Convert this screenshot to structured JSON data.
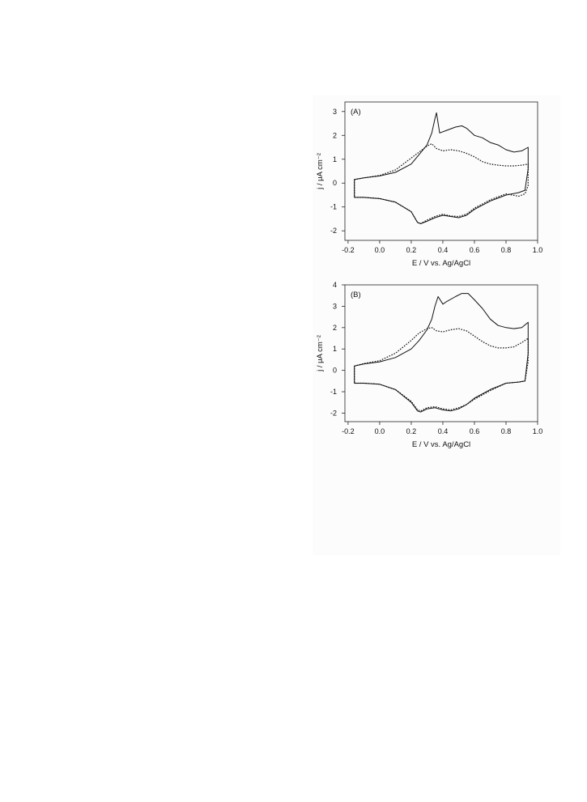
{
  "chart_data": [
    {
      "type": "line",
      "panel_label": "(A)",
      "xlabel": "E / V vs. Ag/AgCl",
      "ylabel": "j / μA cm⁻²",
      "xlim": [
        -0.22,
        1.0
      ],
      "ylim": [
        -2.4,
        3.4
      ],
      "xticks": [
        "-0.2",
        "0.0",
        "0.2",
        "0.4",
        "0.6",
        "0.8",
        "1.0"
      ],
      "yticks": [
        "3",
        "2",
        "1",
        "0",
        "-1",
        "-2"
      ],
      "grid": false,
      "series": [
        {
          "style": "solid",
          "x": [
            -0.16,
            -0.1,
            0.0,
            0.1,
            0.2,
            0.25,
            0.3,
            0.33,
            0.35,
            0.36,
            0.38,
            0.42,
            0.48,
            0.52,
            0.55,
            0.6,
            0.65,
            0.7,
            0.75,
            0.8,
            0.85,
            0.9,
            0.94,
            0.94,
            0.92,
            0.88,
            0.8,
            0.7,
            0.6,
            0.55,
            0.5,
            0.45,
            0.4,
            0.35,
            0.3,
            0.26,
            0.24,
            0.2,
            0.1,
            0.0,
            -0.1,
            -0.16,
            -0.16
          ],
          "y": [
            0.15,
            0.22,
            0.3,
            0.45,
            0.8,
            1.2,
            1.6,
            2.1,
            2.7,
            2.95,
            2.1,
            2.2,
            2.35,
            2.4,
            2.3,
            2.0,
            1.9,
            1.7,
            1.6,
            1.4,
            1.3,
            1.35,
            1.5,
            0.6,
            -0.3,
            -0.4,
            -0.5,
            -0.75,
            -1.1,
            -1.35,
            -1.45,
            -1.4,
            -1.35,
            -1.45,
            -1.6,
            -1.7,
            -1.65,
            -1.2,
            -0.8,
            -0.65,
            -0.6,
            -0.6,
            0.15
          ]
        },
        {
          "style": "dotted",
          "x": [
            -0.16,
            -0.1,
            0.0,
            0.1,
            0.2,
            0.25,
            0.3,
            0.33,
            0.36,
            0.4,
            0.45,
            0.5,
            0.55,
            0.6,
            0.65,
            0.7,
            0.75,
            0.8,
            0.85,
            0.9,
            0.94,
            0.94,
            0.92,
            0.88,
            0.84,
            0.8,
            0.7,
            0.6,
            0.55,
            0.5,
            0.45,
            0.4,
            0.35,
            0.3,
            0.26,
            0.24,
            0.2,
            0.1,
            0.0,
            -0.1,
            -0.16,
            -0.16
          ],
          "y": [
            0.15,
            0.22,
            0.32,
            0.55,
            1.05,
            1.3,
            1.55,
            1.65,
            1.45,
            1.35,
            1.4,
            1.35,
            1.25,
            1.1,
            0.9,
            0.8,
            0.75,
            0.72,
            0.72,
            0.75,
            0.8,
            -0.1,
            -0.45,
            -0.55,
            -0.5,
            -0.45,
            -0.7,
            -1.05,
            -1.3,
            -1.4,
            -1.38,
            -1.3,
            -1.4,
            -1.55,
            -1.7,
            -1.65,
            -1.2,
            -0.8,
            -0.65,
            -0.6,
            -0.6,
            0.15
          ]
        }
      ]
    },
    {
      "type": "line",
      "panel_label": "(B)",
      "xlabel": "E / V vs. Ag/AgCl",
      "ylabel": "j / μA cm⁻²",
      "xlim": [
        -0.22,
        1.0
      ],
      "ylim": [
        -2.4,
        4.0
      ],
      "xticks": [
        "-0.2",
        "0.0",
        "0.2",
        "0.4",
        "0.6",
        "0.8",
        "1.0"
      ],
      "yticks": [
        "4",
        "3",
        "2",
        "1",
        "0",
        "-1",
        "-2"
      ],
      "grid": false,
      "series": [
        {
          "style": "solid",
          "x": [
            -0.16,
            -0.1,
            0.0,
            0.1,
            0.2,
            0.25,
            0.3,
            0.33,
            0.35,
            0.37,
            0.4,
            0.42,
            0.48,
            0.52,
            0.56,
            0.6,
            0.65,
            0.7,
            0.75,
            0.8,
            0.85,
            0.9,
            0.94,
            0.94,
            0.92,
            0.88,
            0.8,
            0.7,
            0.6,
            0.55,
            0.5,
            0.45,
            0.4,
            0.35,
            0.3,
            0.26,
            0.24,
            0.2,
            0.1,
            0.0,
            -0.1,
            -0.16,
            -0.16
          ],
          "y": [
            0.2,
            0.3,
            0.4,
            0.6,
            1.0,
            1.4,
            1.9,
            2.4,
            3.0,
            3.45,
            3.1,
            3.2,
            3.45,
            3.6,
            3.6,
            3.3,
            2.9,
            2.4,
            2.1,
            2.0,
            1.95,
            2.0,
            2.25,
            0.8,
            -0.5,
            -0.55,
            -0.6,
            -0.9,
            -1.3,
            -1.6,
            -1.8,
            -1.9,
            -1.85,
            -1.75,
            -1.8,
            -1.95,
            -1.9,
            -1.5,
            -0.9,
            -0.65,
            -0.6,
            -0.6,
            0.2
          ]
        },
        {
          "style": "dotted",
          "x": [
            -0.16,
            -0.1,
            0.0,
            0.1,
            0.2,
            0.25,
            0.3,
            0.33,
            0.36,
            0.4,
            0.45,
            0.5,
            0.55,
            0.6,
            0.65,
            0.7,
            0.75,
            0.8,
            0.85,
            0.9,
            0.94,
            0.94,
            0.92,
            0.88,
            0.8,
            0.7,
            0.6,
            0.55,
            0.5,
            0.45,
            0.4,
            0.35,
            0.3,
            0.26,
            0.24,
            0.2,
            0.1,
            0.0,
            -0.1,
            -0.16,
            -0.16
          ],
          "y": [
            0.2,
            0.32,
            0.45,
            0.8,
            1.4,
            1.75,
            1.95,
            2.0,
            1.85,
            1.8,
            1.9,
            1.95,
            1.85,
            1.6,
            1.35,
            1.15,
            1.05,
            1.05,
            1.1,
            1.3,
            1.5,
            0.4,
            -0.5,
            -0.55,
            -0.6,
            -0.95,
            -1.35,
            -1.6,
            -1.75,
            -1.85,
            -1.8,
            -1.7,
            -1.75,
            -1.9,
            -1.85,
            -1.45,
            -0.9,
            -0.65,
            -0.6,
            -0.6,
            0.2
          ]
        }
      ]
    }
  ]
}
